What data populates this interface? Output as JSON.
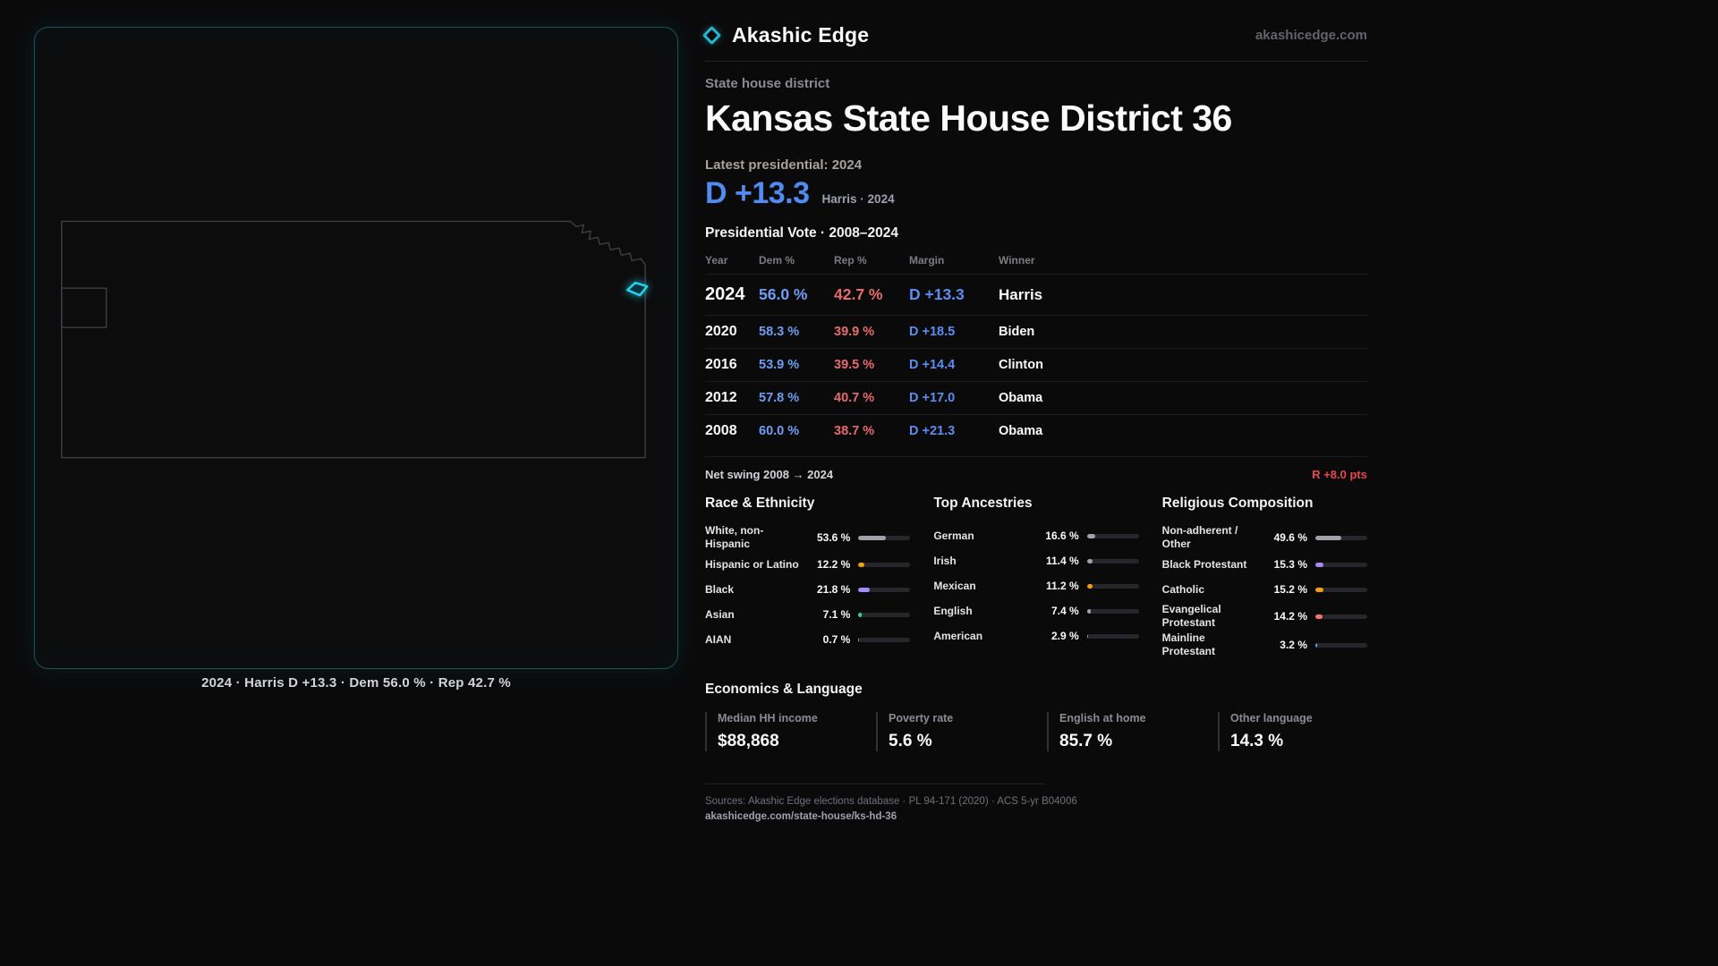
{
  "brand": {
    "name": "Akashic Edge",
    "site": "akashicedge.com"
  },
  "map_panel": {
    "caption": "2024 · Harris D +13.3 · Dem 56.0 % · Rep 42.7 %",
    "outline_color": "#3f3f46",
    "highlight_color": "#22d3ee"
  },
  "header": {
    "kicker": "State house district",
    "title": "Kansas State House District 36",
    "latest_label": "Latest presidential: 2024",
    "headline_margin": "D +13.3",
    "headline_note": "Harris · 2024"
  },
  "vote_table": {
    "title": "Presidential Vote · 2008–2024",
    "columns": [
      "Year",
      "Dem %",
      "Rep %",
      "Margin",
      "Winner"
    ],
    "rows": [
      {
        "year": "2024",
        "dem": "56.0 %",
        "rep": "42.7 %",
        "margin": "D +13.3",
        "winner": "Harris"
      },
      {
        "year": "2020",
        "dem": "58.3 %",
        "rep": "39.9 %",
        "margin": "D +18.5",
        "winner": "Biden"
      },
      {
        "year": "2016",
        "dem": "53.9 %",
        "rep": "39.5 %",
        "margin": "D +14.4",
        "winner": "Clinton"
      },
      {
        "year": "2012",
        "dem": "57.8 %",
        "rep": "40.7 %",
        "margin": "D +17.0",
        "winner": "Obama"
      },
      {
        "year": "2008",
        "dem": "60.0 %",
        "rep": "38.7 %",
        "margin": "D +21.3",
        "winner": "Obama"
      }
    ],
    "swing_label": "Net swing 2008 → 2024",
    "swing_value": "R +8.0 pts"
  },
  "demographics": {
    "race": {
      "title": "Race & Ethnicity",
      "items": [
        {
          "label": "White, non-Hispanic",
          "value": "53.6 %",
          "pct": 53.6,
          "color": "#a1a1aa"
        },
        {
          "label": "Hispanic or Latino",
          "value": "12.2 %",
          "pct": 12.2,
          "color": "#f59e0b"
        },
        {
          "label": "Black",
          "value": "21.8 %",
          "pct": 21.8,
          "color": "#a78bfa"
        },
        {
          "label": "Asian",
          "value": "7.1 %",
          "pct": 7.1,
          "color": "#34d399"
        },
        {
          "label": "AIAN",
          "value": "0.7 %",
          "pct": 0.7,
          "color": "#a1a1aa"
        }
      ]
    },
    "ancestries": {
      "title": "Top Ancestries",
      "items": [
        {
          "label": "German",
          "value": "16.6 %",
          "pct": 16.6,
          "color": "#a1a1aa"
        },
        {
          "label": "Irish",
          "value": "11.4 %",
          "pct": 11.4,
          "color": "#a1a1aa"
        },
        {
          "label": "Mexican",
          "value": "11.2 %",
          "pct": 11.2,
          "color": "#f59e0b"
        },
        {
          "label": "English",
          "value": "7.4 %",
          "pct": 7.4,
          "color": "#a1a1aa"
        },
        {
          "label": "American",
          "value": "2.9 %",
          "pct": 2.9,
          "color": "#a1a1aa"
        }
      ]
    },
    "religion": {
      "title": "Religious Composition",
      "items": [
        {
          "label": "Non-adherent / Other",
          "value": "49.6 %",
          "pct": 49.6,
          "color": "#a1a1aa"
        },
        {
          "label": "Black Protestant",
          "value": "15.3 %",
          "pct": 15.3,
          "color": "#a78bfa"
        },
        {
          "label": "Catholic",
          "value": "15.2 %",
          "pct": 15.2,
          "color": "#f59e0b"
        },
        {
          "label": "Evangelical Protestant",
          "value": "14.2 %",
          "pct": 14.2,
          "color": "#f87171"
        },
        {
          "label": "Mainline Protestant",
          "value": "3.2 %",
          "pct": 3.2,
          "color": "#60a5fa"
        }
      ]
    }
  },
  "economics": {
    "title": "Economics & Language",
    "stats": [
      {
        "label": "Median HH income",
        "value": "$88,868"
      },
      {
        "label": "Poverty rate",
        "value": "5.6 %"
      },
      {
        "label": "English at home",
        "value": "85.7 %"
      },
      {
        "label": "Other language",
        "value": "14.3 %"
      }
    ]
  },
  "footer": {
    "sources": "Sources: Akashic Edge elections database · PL 94-171 (2020) · ACS 5-yr B04006",
    "permalink": "akashicedge.com/state-house/ks-hd-36"
  }
}
